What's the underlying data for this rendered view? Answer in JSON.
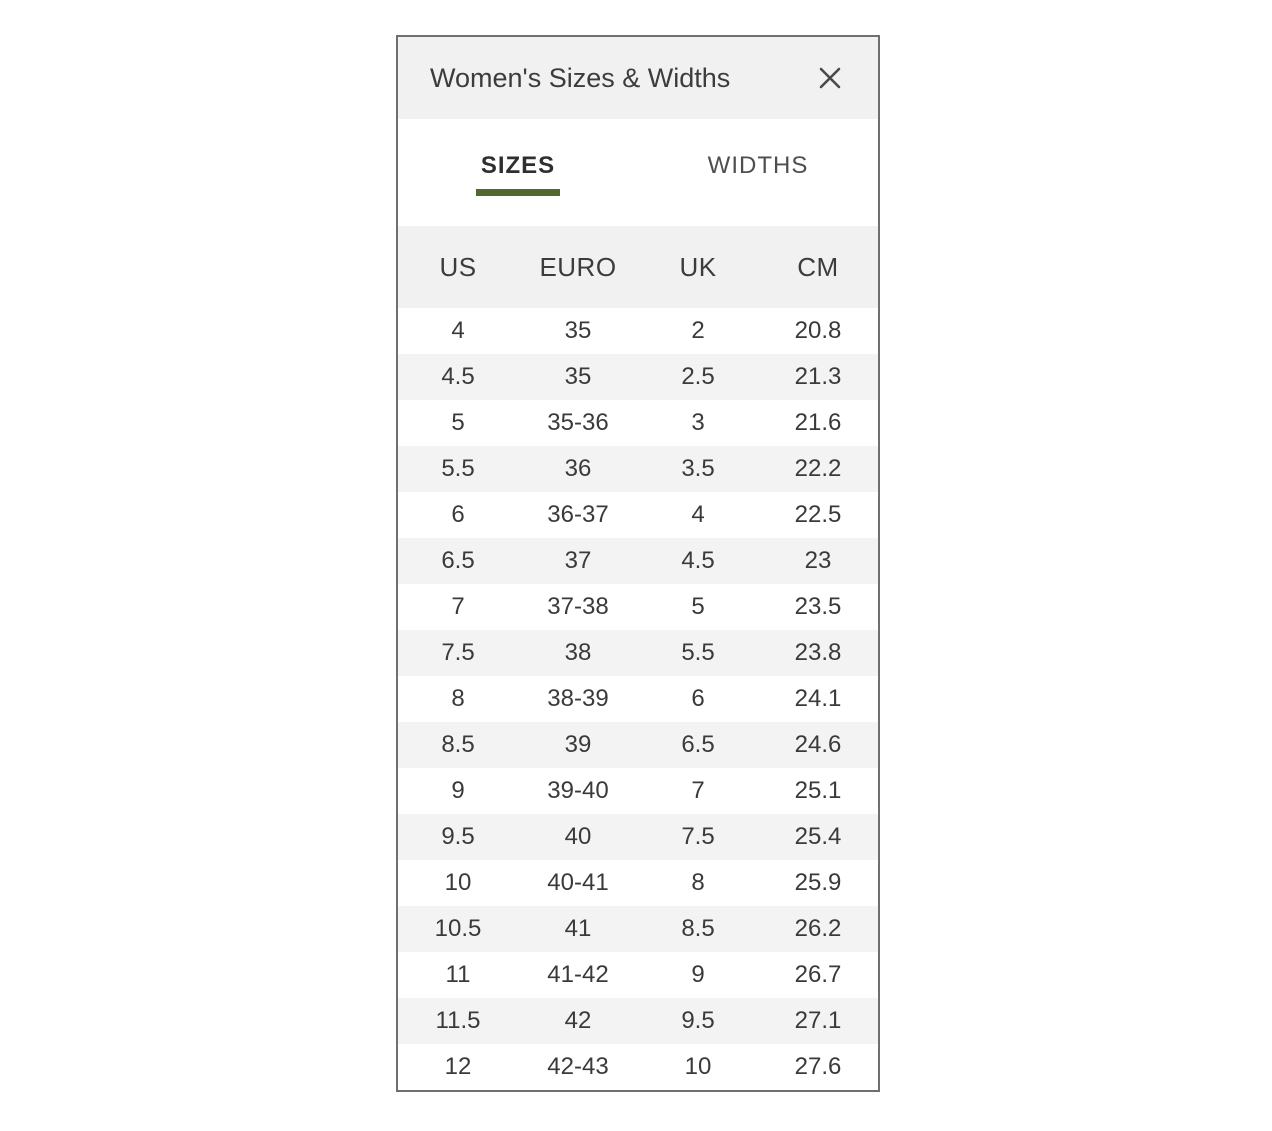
{
  "modal": {
    "title": "Women's Sizes & Widths",
    "accent_color": "#4f6a2c",
    "tabs": [
      {
        "label": "SIZES",
        "active": true
      },
      {
        "label": "WIDTHS",
        "active": false
      }
    ],
    "table": {
      "columns": [
        "US",
        "EURO",
        "UK",
        "CM"
      ],
      "rows": [
        [
          "4",
          "35",
          "2",
          "20.8"
        ],
        [
          "4.5",
          "35",
          "2.5",
          "21.3"
        ],
        [
          "5",
          "35-36",
          "3",
          "21.6"
        ],
        [
          "5.5",
          "36",
          "3.5",
          "22.2"
        ],
        [
          "6",
          "36-37",
          "4",
          "22.5"
        ],
        [
          "6.5",
          "37",
          "4.5",
          "23"
        ],
        [
          "7",
          "37-38",
          "5",
          "23.5"
        ],
        [
          "7.5",
          "38",
          "5.5",
          "23.8"
        ],
        [
          "8",
          "38-39",
          "6",
          "24.1"
        ],
        [
          "8.5",
          "39",
          "6.5",
          "24.6"
        ],
        [
          "9",
          "39-40",
          "7",
          "25.1"
        ],
        [
          "9.5",
          "40",
          "7.5",
          "25.4"
        ],
        [
          "10",
          "40-41",
          "8",
          "25.9"
        ],
        [
          "10.5",
          "41",
          "8.5",
          "26.2"
        ],
        [
          "11",
          "41-42",
          "9",
          "26.7"
        ],
        [
          "11.5",
          "42",
          "9.5",
          "27.1"
        ],
        [
          "12",
          "42-43",
          "10",
          "27.6"
        ]
      ]
    }
  }
}
